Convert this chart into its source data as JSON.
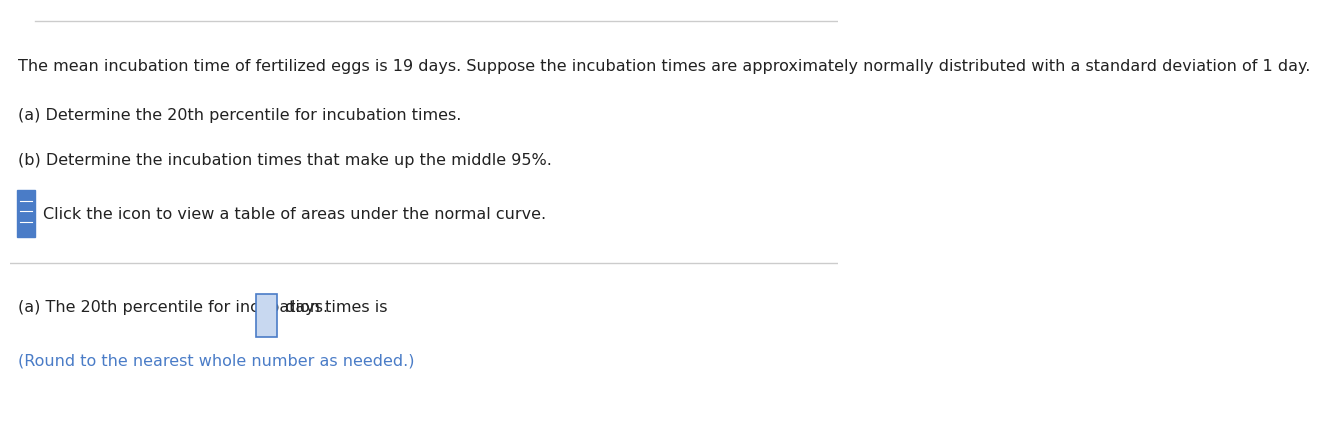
{
  "background_color": "#ffffff",
  "top_border_color": "#cccccc",
  "divider_color": "#cccccc",
  "line1": "The mean incubation time of fertilized eggs is 19 days. Suppose the incubation times are approximately normally distributed with a standard deviation of 1 day.",
  "line2": "(a) Determine the 20th percentile for incubation times.",
  "line3": "(b) Determine the incubation times that make up the middle 95%.",
  "icon_text": "Click the icon to view a table of areas under the normal curve.",
  "icon_color": "#4a7cc7",
  "answer_line_black": "(a) The 20th percentile for incubation times is ",
  "answer_line_suffix": " days.",
  "answer_hint": "(Round to the nearest whole number as needed.)",
  "hint_color": "#4a7cc7",
  "text_color": "#222222",
  "font_size_main": 11.5,
  "input_box_color": "#c8d8f0",
  "input_box_border": "#4a7cc7"
}
